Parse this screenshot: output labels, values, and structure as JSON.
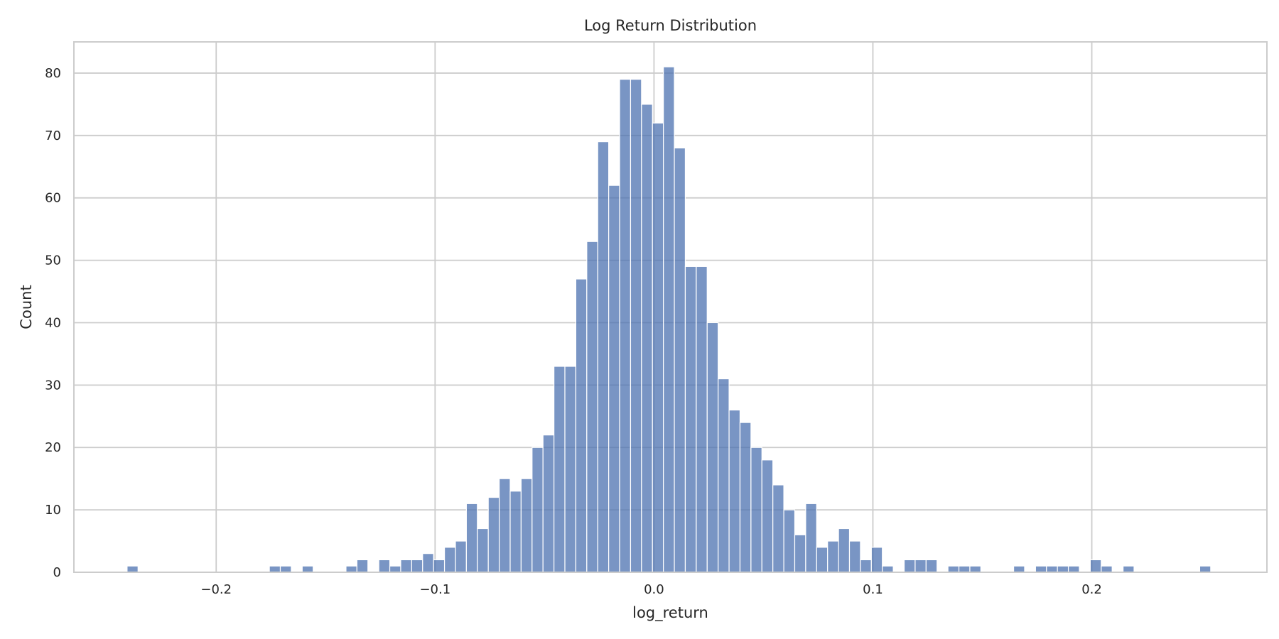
{
  "chart_data": {
    "type": "bar",
    "title": "Log Return Distribution",
    "xlabel": "log_return",
    "ylabel": "Count",
    "xlim": [
      -0.265,
      0.28
    ],
    "ylim": [
      0,
      85
    ],
    "x_ticks": [
      -0.2,
      -0.1,
      0.0,
      0.1,
      0.2
    ],
    "x_tick_labels": [
      "−0.2",
      "−0.1",
      "0.0",
      "0.1",
      "0.2"
    ],
    "y_ticks": [
      0,
      10,
      20,
      30,
      40,
      50,
      60,
      70,
      80
    ],
    "y_tick_labels": [
      "0",
      "10",
      "20",
      "30",
      "40",
      "50",
      "60",
      "70",
      "80"
    ],
    "grid": true,
    "bar_color": "#4c72b0",
    "bin_start": -0.2407,
    "bin_width": 0.005,
    "counts": [
      1,
      0,
      0,
      0,
      0,
      0,
      0,
      0,
      0,
      0,
      0,
      0,
      0,
      1,
      1,
      0,
      1,
      0,
      0,
      0,
      1,
      2,
      0,
      2,
      1,
      2,
      2,
      3,
      2,
      4,
      5,
      11,
      7,
      12,
      15,
      13,
      15,
      20,
      22,
      33,
      33,
      47,
      53,
      69,
      62,
      79,
      79,
      75,
      72,
      81,
      68,
      49,
      49,
      40,
      31,
      26,
      24,
      20,
      18,
      14,
      10,
      6,
      11,
      4,
      5,
      7,
      5,
      2,
      4,
      1,
      0,
      2,
      2,
      2,
      0,
      1,
      1,
      1,
      0,
      0,
      0,
      1,
      0,
      1,
      1,
      1,
      1,
      0,
      2,
      1,
      0,
      1,
      0,
      0,
      0,
      0,
      0,
      0,
      1
    ]
  }
}
